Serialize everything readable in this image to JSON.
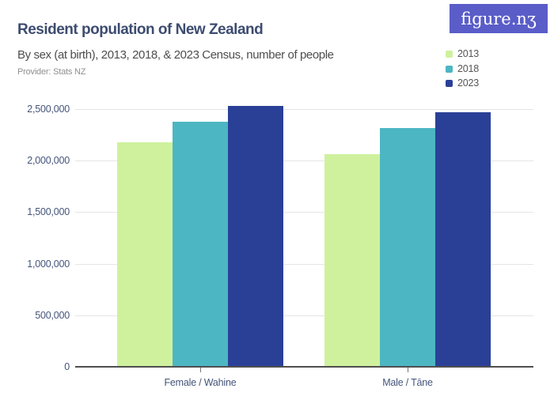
{
  "header": {
    "title": "Resident population of New Zealand",
    "subtitle": "By sex (at birth), 2013, 2018, & 2023 Census, number of people",
    "provider": "Provider: Stats NZ"
  },
  "logo": {
    "text": "figure.nʒ",
    "bg_color": "#5a5dc8",
    "text_color": "#ffffff"
  },
  "legend": {
    "position": "top-right",
    "items": [
      {
        "label": "2013",
        "color": "#cff19e"
      },
      {
        "label": "2018",
        "color": "#4db6c3"
      },
      {
        "label": "2023",
        "color": "#2a4097"
      }
    ]
  },
  "chart_data": {
    "type": "bar",
    "title": "Resident population of New Zealand",
    "subtitle": "By sex (at birth), 2013, 2018, & 2023 Census, number of people",
    "provider": "Provider: Stats NZ",
    "categories": [
      "Female / Wahine",
      "Male / Tāne"
    ],
    "series": [
      {
        "name": "2013",
        "color": "#cff19e",
        "values": [
          2177829,
          2064219
        ]
      },
      {
        "name": "2018",
        "color": "#4db6c3",
        "values": [
          2380197,
          2319558
        ]
      },
      {
        "name": "2023",
        "color": "#2a4097",
        "values": [
          2527000,
          2467000
        ]
      }
    ],
    "xlabel": "",
    "ylabel": "number of people",
    "ylim": [
      0,
      2500000
    ],
    "yticks": [
      0,
      500000,
      1000000,
      1500000,
      2000000,
      2500000
    ],
    "grid": true,
    "legend_position": "top-right"
  },
  "colors": {
    "title_text": "#3d4c6f",
    "subtitle_text": "#4e4e4e",
    "provider_text": "#8f8f8f",
    "axis_label_text": "#44547a",
    "gridline": "#e5e5e5",
    "axis_line": "#4f4f4f",
    "background": "#ffffff"
  }
}
